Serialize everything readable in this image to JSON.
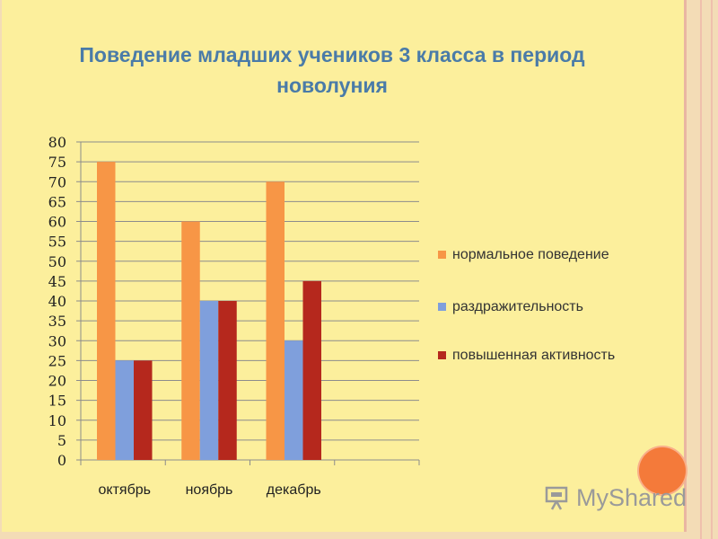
{
  "chart_data": {
    "type": "bar",
    "title": "Поведение младших учеников 3 класса в период новолуния",
    "categories": [
      "октябрь",
      "ноябрь",
      "декабрь",
      ""
    ],
    "series": [
      {
        "name": "нормальное поведение",
        "color": "#f79646",
        "values": [
          75,
          60,
          70,
          null
        ]
      },
      {
        "name": "раздражительность",
        "color": "#7f9fdc",
        "values": [
          25,
          40,
          30,
          null
        ]
      },
      {
        "name": "повышенная активность",
        "color": "#b5281d",
        "values": [
          25,
          40,
          45,
          null
        ]
      }
    ],
    "ylim": [
      0,
      80
    ],
    "y_ticks": [
      0,
      5,
      10,
      15,
      20,
      25,
      30,
      35,
      40,
      45,
      50,
      55,
      60,
      65,
      70,
      75,
      80
    ],
    "grid": true,
    "legend_position": "right",
    "xlabel": "",
    "ylabel": ""
  },
  "watermark": {
    "text": "MyShared",
    "icon": "presentation-board-icon"
  }
}
